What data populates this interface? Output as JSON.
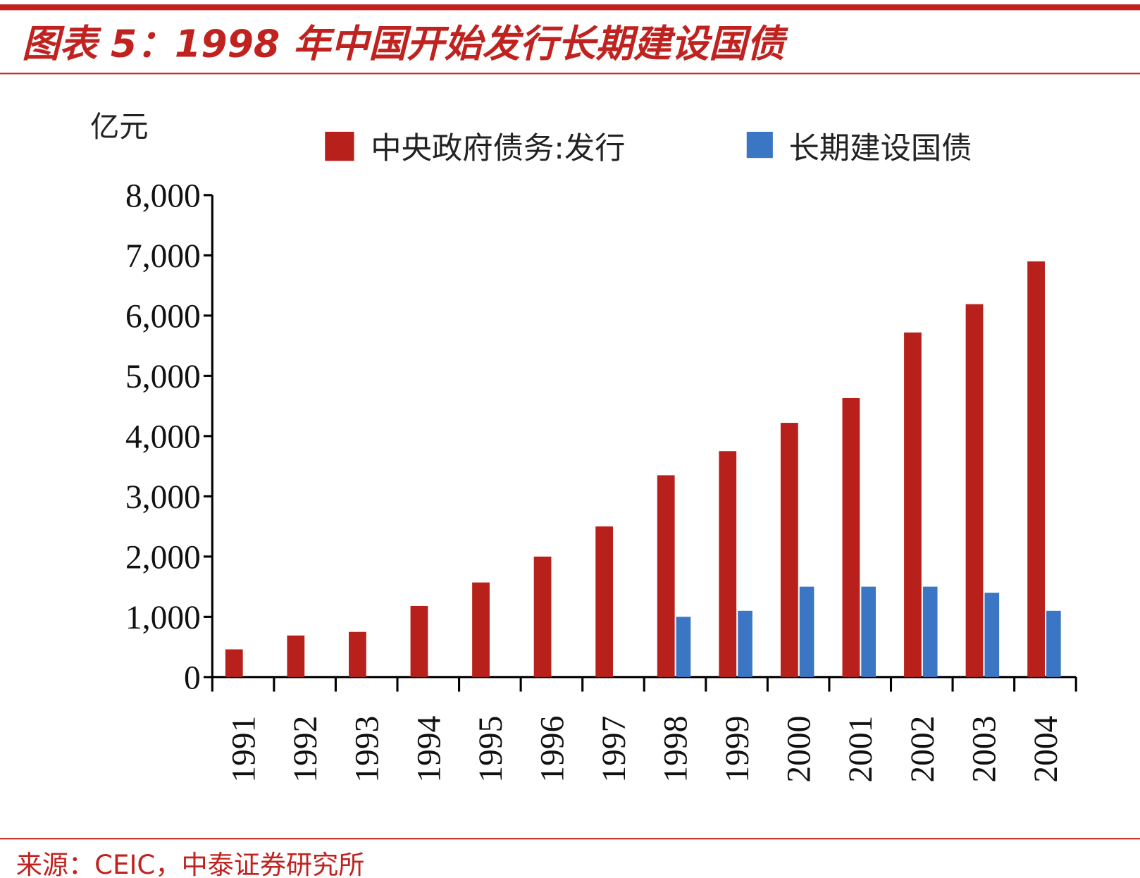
{
  "header": {
    "title": "图表 5：1998 年中国开始发行长期建设国债"
  },
  "footer": {
    "source": "来源：CEIC，中泰证券研究所"
  },
  "colors": {
    "accent": "#c0221f",
    "series_red": "#b8201c",
    "series_blue": "#3a76c4"
  },
  "chart_data": {
    "type": "bar",
    "title": "",
    "ylabel": "亿元",
    "xlabel": "",
    "ylim": [
      0,
      8000
    ],
    "yticks": [
      "0",
      "1,000",
      "2,000",
      "3,000",
      "4,000",
      "5,000",
      "6,000",
      "7,000",
      "8,000"
    ],
    "ytick_values": [
      0,
      1000,
      2000,
      3000,
      4000,
      5000,
      6000,
      7000,
      8000
    ],
    "grid": false,
    "legend_position": "top",
    "categories": [
      "1991",
      "1992",
      "1993",
      "1994",
      "1995",
      "1996",
      "1997",
      "1998",
      "1999",
      "2000",
      "2001",
      "2002",
      "2003",
      "2004"
    ],
    "series": [
      {
        "name": "中央政府债务:发行",
        "color": "#b8201c",
        "values": [
          460,
          690,
          750,
          1180,
          1570,
          2000,
          2500,
          3350,
          3750,
          4220,
          4630,
          5720,
          6190,
          6900
        ]
      },
      {
        "name": "长期建设国债",
        "color": "#3a76c4",
        "values": [
          null,
          null,
          null,
          null,
          null,
          null,
          null,
          1000,
          1100,
          1500,
          1500,
          1500,
          1400,
          1100
        ]
      }
    ]
  }
}
